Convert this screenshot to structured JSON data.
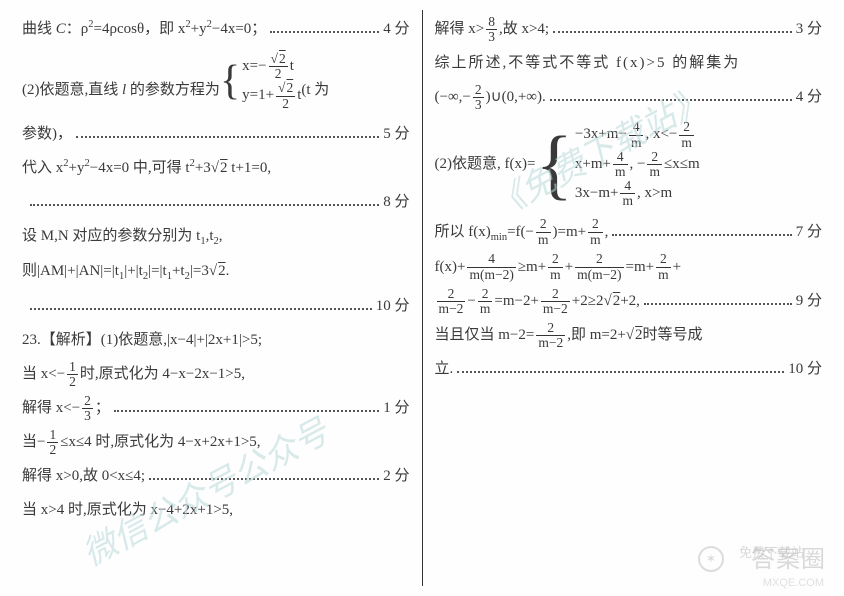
{
  "left": {
    "l1_text": "曲线 C : ρ² = 4ρcosθ，即 x² + y² − 4x = 0；",
    "l1_pts": "4 分",
    "l2_pre": "(2) 依题意，直线 l 的参数方程为",
    "l2_eq1": "x = −(√2⁄2) t",
    "l2_eq2": "y = 1 + (√2⁄2) t",
    "l2_post": "( t 为",
    "l3_text": "参数)，",
    "l3_pts": "5 分",
    "l4_text": "代入 x² + y² − 4x = 0 中, 可得 t² + 3√2 t + 1 = 0,",
    "l5_pts": "8 分",
    "l6_text": "设 M, N 对应的参数分别为 t₁, t₂,",
    "l7_text": "则 |AM| + |AN| = |t₁| + |t₂| = |t₁ + t₂| = 3√2 .",
    "l8_pts": "10 分",
    "l9_text": "23.【解析】(1) 依题意, |x − 4| + |2x + 1| > 5;",
    "l10_text": "当 x < −½ 时, 原式化为 4 − x − 2x − 1 > 5,",
    "l11_text": "解得 x < −⅔ ；",
    "l11_pts": "1 分",
    "l12_text": "当 −½ ≤ x ≤ 4 时, 原式化为 4 − x + 2x + 1 > 5,",
    "l13_text": "解得 x > 0, 故 0 < x ≤ 4;",
    "l13_pts": "2 分",
    "l14_text": "当 x > 4 时, 原式化为 x − 4 + 2x + 1 > 5,"
  },
  "right": {
    "r1_text": "解得 x > 8⁄3, 故 x > 4;",
    "r1_pts": "3 分",
    "r2_text": "综 上 所 述, 不 等 式 不 等 式 f(x) > 5 的 解 集 为",
    "r3_text": "(−∞, −⅔) ∪ (0, +∞).",
    "r3_pts": "4 分",
    "r4_pre": "(2) 依题意, f(x) =",
    "r4_eq1": "−3x + m − 4⁄m , x < −2⁄m",
    "r4_eq2": "x + m + 4⁄m , −2⁄m ≤ x ≤ m",
    "r4_eq3": "3x − m + 4⁄m , x > m",
    "r5_text": "所以 f(x)ₘᵢₙ = f(−2⁄m) = m + 2⁄m ,",
    "r5_pts": "7 分",
    "r6_text": "f(x) + 4⁄(m(m−2)) ≥ m + 2⁄m + 2⁄(m(m−2)) = m + 2⁄m +",
    "r7_text": "2⁄(m−2) − 2⁄m = m − 2 + 2⁄(m−2) + 2 ≥ 2√2 + 2,",
    "r7_pts": "9 分",
    "r8_text": "当且仅当 m − 2 = 2⁄(m−2), 即 m = 2 + √2 时等号成",
    "r9_text": "立.",
    "r9_pts": "10 分"
  },
  "watermarks": {
    "wm1": "微信公众号公众号",
    "wm2": "《免费下载站》"
  },
  "footer": {
    "logo": "答案圈",
    "url": "MXQE.COM",
    "icon_text": "免费下载站"
  }
}
